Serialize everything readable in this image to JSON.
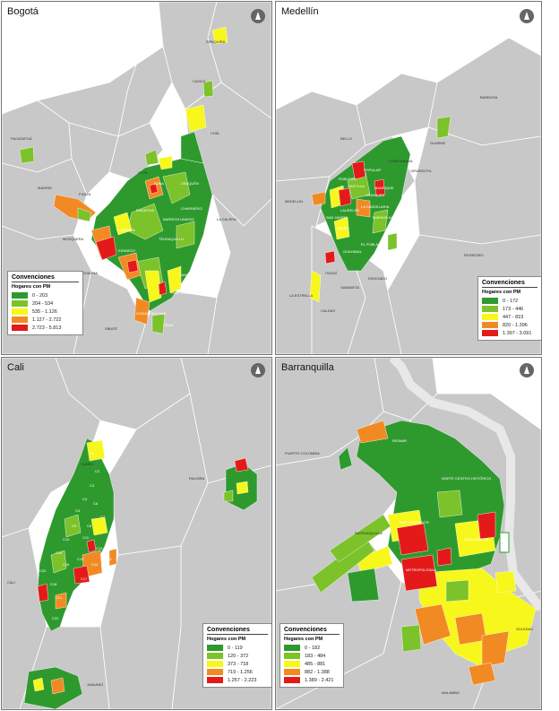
{
  "colors": {
    "c1": "#2e9a2e",
    "c2": "#7cc22a",
    "c3": "#f7f71c",
    "c4": "#f28a24",
    "c5": "#e41a1a",
    "bg": "#c8c8c8",
    "line": "#ffffff"
  },
  "icons": [
    "north-arrow-icon"
  ],
  "panels": {
    "bogota": {
      "title": "Bogotá",
      "legend": {
        "title": "Convenciones",
        "subtitle": "Hogares con PM",
        "ranges": [
          "0 - 203",
          "204 - 534",
          "535 - 1.126",
          "1.127 - 2.722",
          "2.723 - 5.813"
        ]
      },
      "places": [
        "ZIPAQUIRÁ",
        "CAJICÁ",
        "CHÍA",
        "FACATATIVÁ",
        "COTA",
        "MADRID",
        "FUNZA",
        "MOSQUERA",
        "LA CALERA",
        "SOACHA",
        "SUBA",
        "ENGATIVÁ",
        "KENNEDY",
        "BOSA",
        "FONTIBÓN",
        "USAQUÉN",
        "CHAPINERO",
        "BARRIOS UNIDOS",
        "TEUSAQUILLO",
        "SANTA FE",
        "SAN CRISTOBAL",
        "CIUDAD BOLIVAR",
        "USME",
        "SIBATÉ"
      ]
    },
    "medellin": {
      "title": "Medellín",
      "legend": {
        "title": "Convenciones",
        "subtitle": "Hogares con PM",
        "ranges": [
          "0 - 172",
          "173 - 446",
          "447 - 819",
          "820 - 1.396",
          "1.397 - 3.091"
        ]
      },
      "places": [
        "BARBOSA",
        "GUARNE",
        "COPACABANA",
        "GIRARDOTA",
        "BELLO",
        "MEDELLÍN",
        "ENVIGADO",
        "ITAGÜÍ",
        "SABANETA",
        "LA ESTRELLA",
        "CALDAS",
        "RIONEGRO",
        "ROBLEDO",
        "POPULAR",
        "MANRIQUE",
        "ARANJUEZ",
        "CASTILLA",
        "LA CANDELARIA",
        "BUENOS AIRES",
        "LAURELES",
        "BELÉN",
        "SAN JAVIER",
        "EL POBLADO",
        "GUAYABAL"
      ]
    },
    "cali": {
      "title": "Cali",
      "legend": {
        "title": "Convenciones",
        "subtitle": "Hogares con PM",
        "ranges": [
          "0 - 119",
          "120 - 372",
          "373 - 718",
          "719 - 1.256",
          "1.257 - 2.223"
        ]
      },
      "places": [
        "YUMBO",
        "PALMIRA",
        "CALI",
        "JAMUNDÍ",
        "C1",
        "C2",
        "C3",
        "C4",
        "C5",
        "C6",
        "C7",
        "C8",
        "C9",
        "C10",
        "C11",
        "C12",
        "C13",
        "C14",
        "C15",
        "C16",
        "C17",
        "C18",
        "C19",
        "C20",
        "C21",
        "C22"
      ]
    },
    "barranquilla": {
      "title": "Barranquilla",
      "legend": {
        "title": "Convenciones",
        "subtitle": "Hogares con PM",
        "ranges": [
          "0 - 182",
          "183 - 484",
          "485 - 881",
          "882 - 1.388",
          "1.389 - 2.421"
        ]
      },
      "places": [
        "PUERTO COLOMBIA",
        "RIOMAR",
        "NORTE CENTRO HISTÓRICO",
        "BARRANQUILLA",
        "SUR OCCIDENTE",
        "SUR ORIENTE",
        "METROPOLITANA",
        "SOLEDAD",
        "MALAMBO"
      ]
    }
  }
}
